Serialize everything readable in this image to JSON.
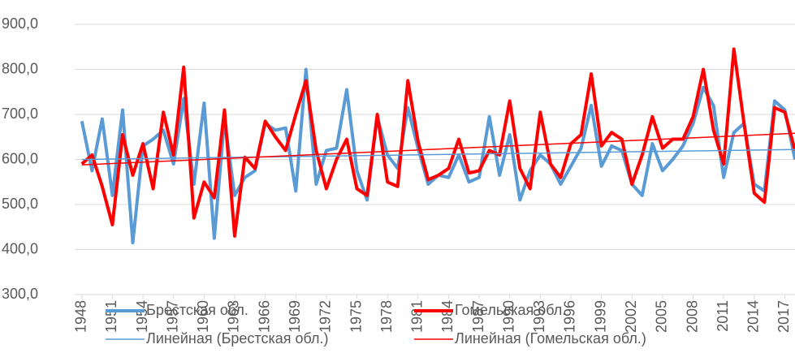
{
  "chart_data": {
    "type": "line",
    "x": [
      1948,
      1949,
      1950,
      1951,
      1952,
      1953,
      1954,
      1955,
      1956,
      1957,
      1958,
      1959,
      1960,
      1961,
      1962,
      1963,
      1964,
      1965,
      1966,
      1967,
      1968,
      1969,
      1970,
      1971,
      1972,
      1973,
      1974,
      1975,
      1976,
      1977,
      1978,
      1979,
      1980,
      1981,
      1982,
      1983,
      1984,
      1985,
      1986,
      1987,
      1988,
      1989,
      1990,
      1991,
      1992,
      1993,
      1994,
      1995,
      1996,
      1997,
      1998,
      1999,
      2000,
      2001,
      2002,
      2003,
      2004,
      2005,
      2006,
      2007,
      2008,
      2009,
      2010,
      2011,
      2012,
      2013,
      2014,
      2015,
      2016,
      2017,
      2018
    ],
    "series": [
      {
        "name": "Брестская обл.",
        "color": "#5b9bd5",
        "width": 4,
        "values": [
          685,
          575,
          690,
          520,
          710,
          415,
          630,
          645,
          665,
          590,
          735,
          545,
          725,
          425,
          690,
          520,
          560,
          575,
          680,
          665,
          670,
          530,
          800,
          545,
          620,
          625,
          755,
          575,
          510,
          695,
          610,
          580,
          715,
          625,
          545,
          565,
          560,
          610,
          550,
          560,
          695,
          565,
          655,
          510,
          575,
          610,
          590,
          545,
          585,
          625,
          720,
          585,
          630,
          620,
          545,
          520,
          635,
          575,
          600,
          630,
          680,
          760,
          720,
          560,
          660,
          680,
          545,
          530,
          730,
          710,
          600
        ]
      },
      {
        "name": "Гомельская обл.",
        "color": "#ff0000",
        "width": 4,
        "values": [
          590,
          610,
          540,
          455,
          655,
          565,
          635,
          535,
          705,
          610,
          805,
          470,
          550,
          515,
          710,
          430,
          605,
          580,
          685,
          650,
          620,
          700,
          775,
          620,
          535,
          600,
          645,
          535,
          520,
          700,
          550,
          540,
          775,
          640,
          555,
          565,
          580,
          645,
          570,
          575,
          620,
          610,
          730,
          580,
          535,
          705,
          590,
          560,
          635,
          655,
          790,
          630,
          660,
          645,
          545,
          610,
          695,
          625,
          645,
          645,
          695,
          800,
          665,
          590,
          845,
          680,
          525,
          505,
          715,
          705,
          620
        ]
      },
      {
        "name": "Линейная (Брестская обл.)",
        "color": "#5b9bd5",
        "width": 1.5,
        "x": [
          1948,
          2018
        ],
        "values": [
          600,
          622
        ]
      },
      {
        "name": "Линейная (Гомельская обл.)",
        "color": "#ff0000",
        "width": 1.5,
        "x": [
          1948,
          2018
        ],
        "values": [
          588,
          658
        ]
      }
    ],
    "xlim": [
      1947.3,
      2018
    ],
    "xticks": [
      1948,
      1951,
      1954,
      1957,
      1960,
      1963,
      1966,
      1969,
      1972,
      1975,
      1978,
      1981,
      1984,
      1987,
      1990,
      1993,
      1996,
      1999,
      2002,
      2005,
      2008,
      2011,
      2014,
      2017
    ],
    "ylim": [
      300,
      900
    ],
    "yticks": [
      {
        "value": 300,
        "label": "300,0"
      },
      {
        "value": 400,
        "label": "400,0"
      },
      {
        "value": 500,
        "label": "500,0"
      },
      {
        "value": 600,
        "label": "600,0"
      },
      {
        "value": 700,
        "label": "700,0"
      },
      {
        "value": 800,
        "label": "800,0"
      },
      {
        "value": 900,
        "label": "900,0"
      }
    ],
    "grid": true
  }
}
